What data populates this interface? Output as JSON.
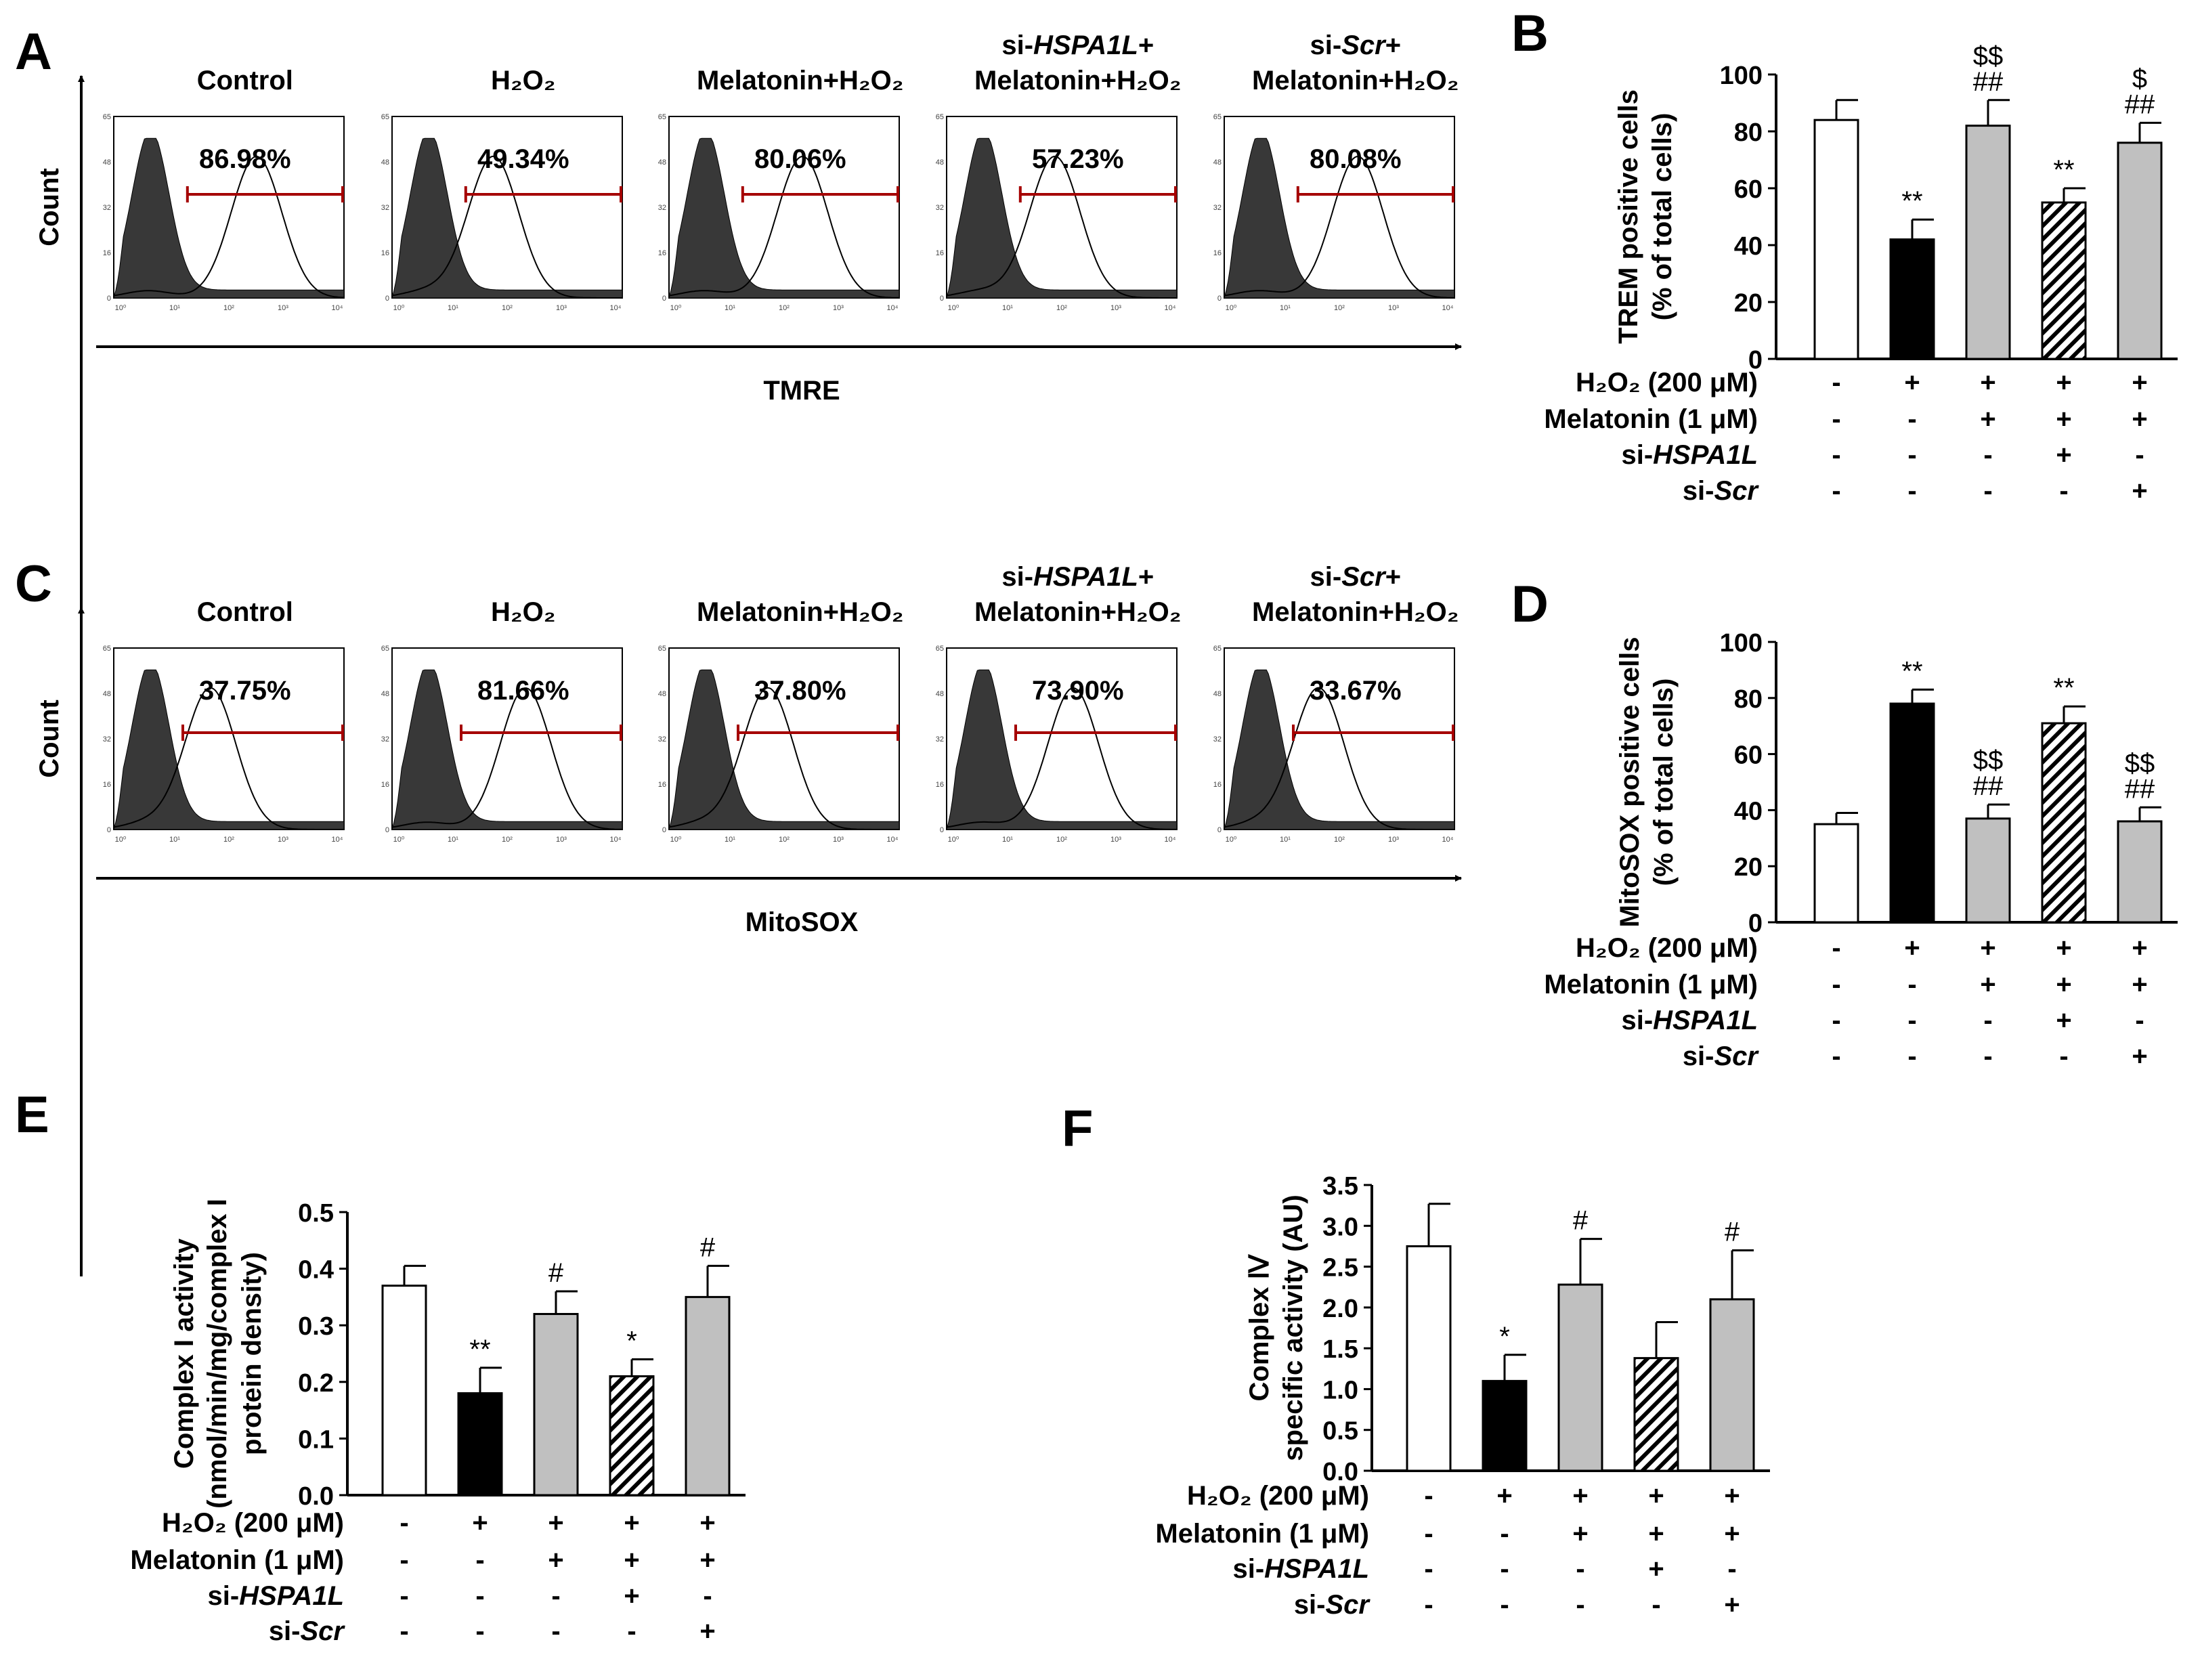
{
  "panels": {
    "A": "A",
    "B": "B",
    "C": "C",
    "D": "D",
    "E": "E",
    "F": "F"
  },
  "flow": {
    "count_label": "Count",
    "tick_y": [
      "0",
      "16",
      "32",
      "48",
      "65"
    ],
    "tick_x": [
      "10⁰",
      "10¹",
      "10²",
      "10³",
      "10⁴"
    ],
    "A": {
      "xlabel": "TMRE",
      "samples": [
        {
          "line1": "Control",
          "line2": "",
          "pct": "86.98%"
        },
        {
          "line1": "H₂O₂",
          "line2": "",
          "pct": "49.34%"
        },
        {
          "line1": "Melatonin+H₂O₂",
          "line2": "",
          "pct": "80.06%"
        },
        {
          "line1": "si-HSPA1L+",
          "line2": "Melatonin+H₂O₂",
          "pct": "57.23%"
        },
        {
          "line1": "si-Scr+",
          "line2": "Melatonin+H₂O₂",
          "pct": "80.08%"
        }
      ]
    },
    "C": {
      "xlabel": "MitoSOX",
      "samples": [
        {
          "line1": "Control",
          "line2": "",
          "pct": "37.75%"
        },
        {
          "line1": "H₂O₂",
          "line2": "",
          "pct": "81.66%"
        },
        {
          "line1": "Melatonin+H₂O₂",
          "line2": "",
          "pct": "37.80%"
        },
        {
          "line1": "si-HSPA1L+",
          "line2": "Melatonin+H₂O₂",
          "pct": "73.90%"
        },
        {
          "line1": "si-Scr+",
          "line2": "Melatonin+H₂O₂",
          "pct": "33.67%"
        }
      ]
    }
  },
  "treatments": {
    "labels": [
      "H₂O₂ (200 μM)",
      "Melatonin (1 μM)",
      "si-HSPA1L",
      "si-Scr"
    ],
    "matrix": [
      [
        "-",
        "+",
        "+",
        "+",
        "+"
      ],
      [
        "-",
        "-",
        "+",
        "+",
        "+"
      ],
      [
        "-",
        "-",
        "-",
        "+",
        "-"
      ],
      [
        "-",
        "-",
        "-",
        "-",
        "+"
      ]
    ]
  },
  "chart_data": [
    {
      "id": "B",
      "type": "bar",
      "ylabel": [
        "TREM positive cells",
        "(% of total cells)"
      ],
      "ylim": [
        0,
        100
      ],
      "yticks": [
        0,
        20,
        40,
        60,
        80,
        100
      ],
      "categories": [
        "Control",
        "H₂O₂",
        "Melatonin+H₂O₂",
        "si-HSPA1L+Melatonin+H₂O₂",
        "si-Scr+Melatonin+H₂O₂"
      ],
      "values": [
        84,
        42,
        82,
        55,
        76
      ],
      "errors": [
        7,
        7,
        9,
        5,
        7
      ],
      "fills": [
        "#ffffff",
        "#000000",
        "#c0c0c0",
        "hatch",
        "#c0c0c0"
      ],
      "annotations": [
        [],
        [
          "**"
        ],
        [
          "##",
          "$$"
        ],
        [
          "**"
        ],
        [
          "##",
          "$"
        ]
      ]
    },
    {
      "id": "D",
      "type": "bar",
      "ylabel": [
        "MitoSOX positive cells",
        "(% of total cells)"
      ],
      "ylim": [
        0,
        100
      ],
      "yticks": [
        0,
        20,
        40,
        60,
        80,
        100
      ],
      "categories": [
        "Control",
        "H₂O₂",
        "Melatonin+H₂O₂",
        "si-HSPA1L+Melatonin+H₂O₂",
        "si-Scr+Melatonin+H₂O₂"
      ],
      "values": [
        35,
        78,
        37,
        71,
        36
      ],
      "errors": [
        4,
        5,
        5,
        6,
        5
      ],
      "fills": [
        "#ffffff",
        "#000000",
        "#c0c0c0",
        "hatch",
        "#c0c0c0"
      ],
      "annotations": [
        [],
        [
          "**"
        ],
        [
          "##",
          "$$"
        ],
        [
          "**"
        ],
        [
          "##",
          "$$"
        ]
      ]
    },
    {
      "id": "E",
      "type": "bar",
      "ylabel": [
        "Complex I activity",
        "(nmol/min/mg/complex I",
        "protein density)"
      ],
      "ylim": [
        0,
        0.5
      ],
      "yticks": [
        0,
        0.1,
        0.2,
        0.3,
        0.4,
        0.5
      ],
      "decimals": 1,
      "categories": [
        "Control",
        "H₂O₂",
        "Melatonin+H₂O₂",
        "si-HSPA1L+Melatonin+H₂O₂",
        "si-Scr+Melatonin+H₂O₂"
      ],
      "values": [
        0.37,
        0.18,
        0.32,
        0.21,
        0.35
      ],
      "errors": [
        0.035,
        0.045,
        0.04,
        0.03,
        0.055
      ],
      "fills": [
        "#ffffff",
        "#000000",
        "#c0c0c0",
        "hatch",
        "#c0c0c0"
      ],
      "annotations": [
        [],
        [
          "**"
        ],
        [
          "#"
        ],
        [
          "*"
        ],
        [
          "#"
        ]
      ]
    },
    {
      "id": "F",
      "type": "bar",
      "ylabel": [
        "Complex Ⅳ",
        "specific activity (AU)"
      ],
      "ylim": [
        0,
        3.5
      ],
      "yticks": [
        0,
        0.5,
        1.0,
        1.5,
        2.0,
        2.5,
        3.0,
        3.5
      ],
      "decimals": 1,
      "categories": [
        "Control",
        "H₂O₂",
        "Melatonin+H₂O₂",
        "si-HSPA1L+Melatonin+H₂O₂",
        "si-Scr+Melatonin+H₂O₂"
      ],
      "values": [
        2.75,
        1.1,
        2.28,
        1.38,
        2.1
      ],
      "errors": [
        0.52,
        0.32,
        0.56,
        0.44,
        0.6
      ],
      "fills": [
        "#ffffff",
        "#000000",
        "#c0c0c0",
        "hatch",
        "#c0c0c0"
      ],
      "annotations": [
        [],
        [
          "*"
        ],
        [
          "#"
        ],
        [],
        [
          "#"
        ]
      ]
    }
  ]
}
